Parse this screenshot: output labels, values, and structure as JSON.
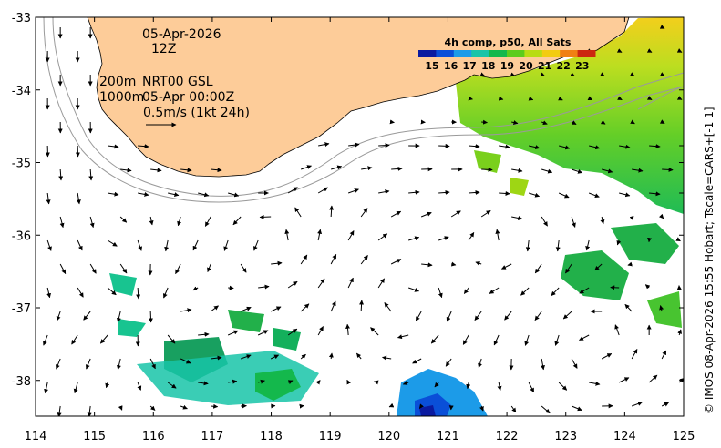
{
  "map": {
    "annotation": {
      "date": "05-Apr-2026",
      "hour": "12Z",
      "depth_line1": "200m",
      "product": "NRT00 GSL",
      "depth_line2": "1000m",
      "analysis_time": "05-Apr 00:00Z",
      "scale_label": "0.5m/s (1kt 24h)"
    },
    "colorbar": {
      "title": "4h comp, p50, All Sats",
      "ticks": [
        "15",
        "16",
        "17",
        "18",
        "19",
        "20",
        "21",
        "22",
        "23"
      ],
      "colors": [
        "#0a1aa0",
        "#0a4fd8",
        "#1c9be8",
        "#18c4a8",
        "#14b84c",
        "#5ccc1c",
        "#b8dc14",
        "#f2cc10",
        "#f08014",
        "#cc2810"
      ]
    },
    "axes": {
      "x_ticks": [
        "114",
        "115",
        "116",
        "117",
        "118",
        "119",
        "120",
        "121",
        "122",
        "123",
        "124",
        "125"
      ],
      "y_ticks": [
        "-33",
        "-34",
        "-35",
        "-36",
        "-37",
        "-38"
      ]
    },
    "credit": "© IMOS 08-Apr-2026 15:55 Hobart; Tscale=CARS+[-1 1]",
    "colors": {
      "land": "#fdcc99",
      "contour": "#9a9a9a",
      "arrow": "#000000"
    }
  }
}
